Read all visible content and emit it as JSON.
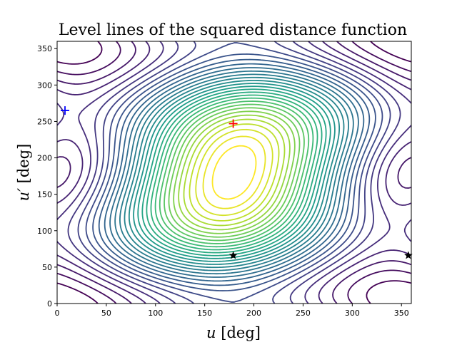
{
  "chart_data": {
    "type": "contour",
    "title": "Level lines of the squared distance function",
    "xlabel": "u [deg]",
    "ylabel": "u′ [deg]",
    "xlim": [
      0,
      360
    ],
    "ylim": [
      0,
      360
    ],
    "xticks": [
      0,
      50,
      100,
      150,
      200,
      250,
      300,
      350
    ],
    "yticks": [
      0,
      50,
      100,
      150,
      200,
      250,
      300,
      350
    ],
    "grid": false,
    "colormap": "viridis",
    "markers": [
      {
        "symbol": "plus",
        "color": "#0000ff",
        "x": 8,
        "y": 265
      },
      {
        "symbol": "plus",
        "color": "#ff0000",
        "x": 179,
        "y": 247
      },
      {
        "symbol": "star",
        "color": "#000000",
        "x": 179,
        "y": 66
      },
      {
        "symbol": "star",
        "color": "#000000",
        "x": 357,
        "y": 66
      }
    ]
  }
}
